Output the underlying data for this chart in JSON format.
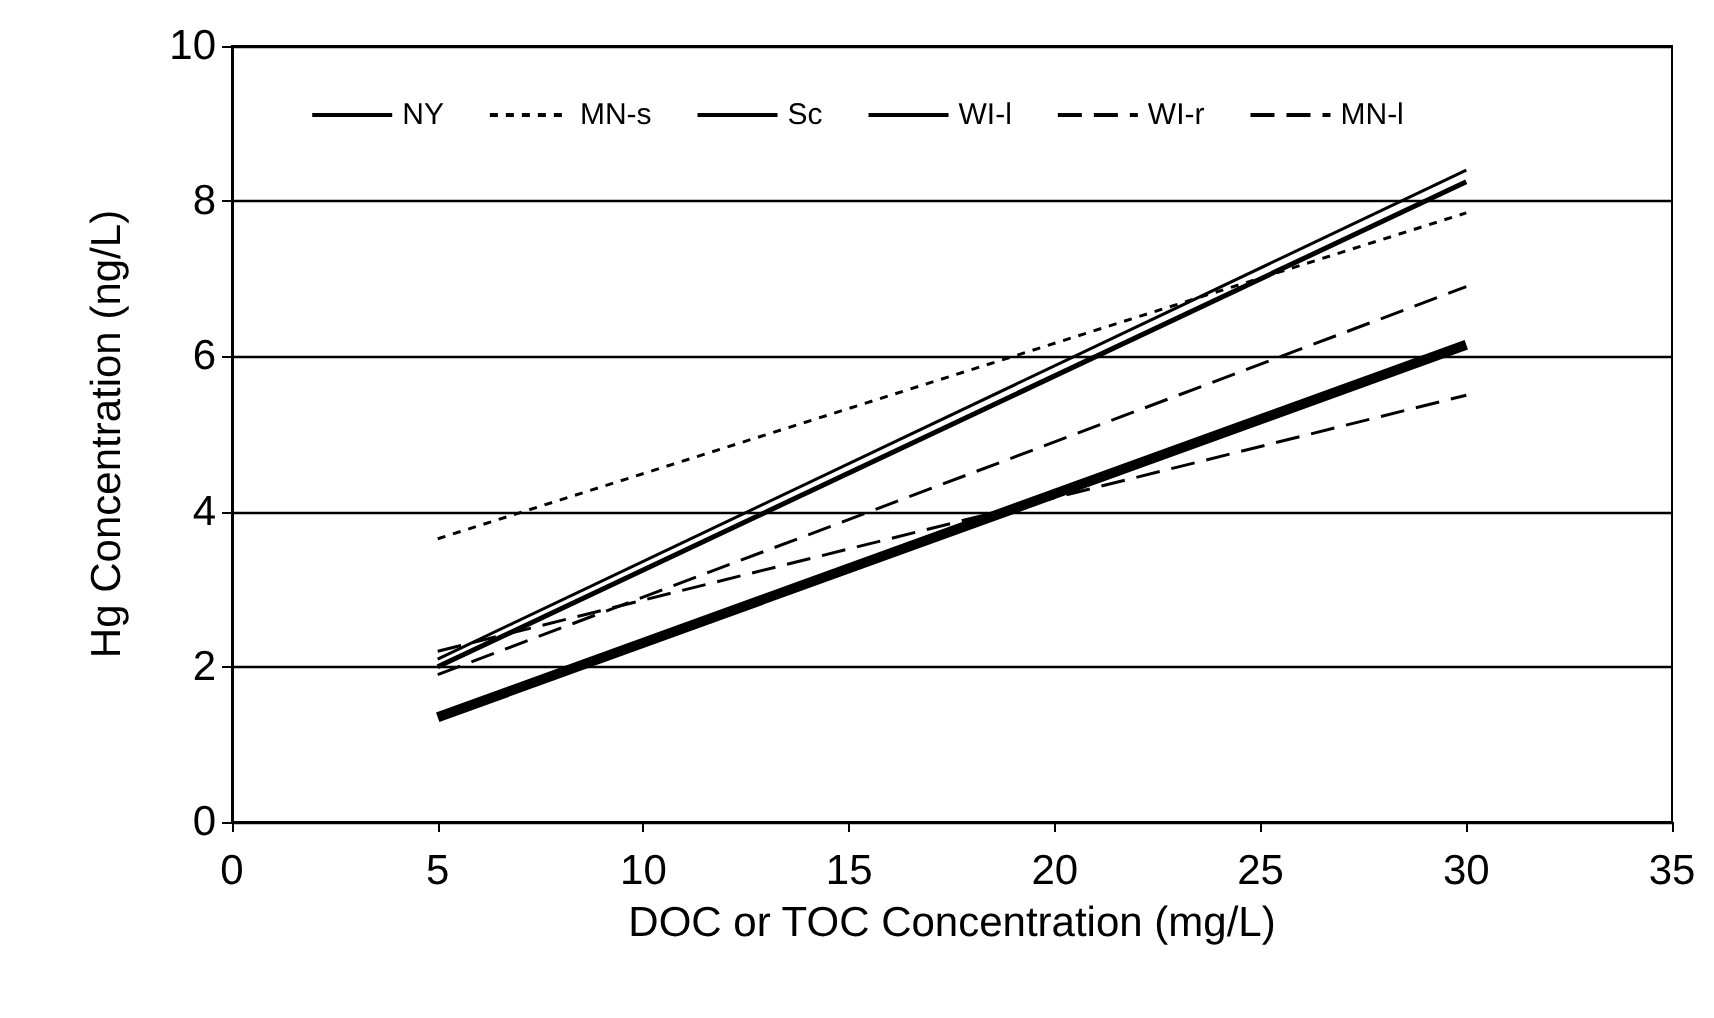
{
  "chart_data": {
    "type": "line",
    "xlabel": "DOC or TOC Concentration (mg/L)",
    "ylabel": "Hg Concentration (ng/L)",
    "xlim": [
      0,
      35
    ],
    "xticks": [
      0,
      5,
      10,
      15,
      20,
      25,
      30,
      35
    ],
    "ylim": [
      0,
      10
    ],
    "yticks": [
      0,
      2,
      4,
      6,
      8,
      10
    ],
    "grid": "y",
    "legend": "top",
    "marker": "none",
    "x": [
      5,
      30
    ],
    "series": [
      {
        "name": "NY",
        "color": "#000000",
        "line_style": "solid",
        "values": [
          2.1,
          8.4
        ]
      },
      {
        "name": "MN-s",
        "color": "#000000",
        "line_style": "dotted",
        "values": [
          3.65,
          7.85
        ]
      },
      {
        "name": "Sc",
        "color": "#000000",
        "line_style": "solid",
        "values": [
          2.0,
          8.25
        ]
      },
      {
        "name": "WI-l",
        "color": "#000000",
        "line_style": "solid",
        "values": [
          1.35,
          6.15
        ]
      },
      {
        "name": "WI-r",
        "color": "#000000",
        "line_style": "dashed",
        "values": [
          1.9,
          6.9
        ]
      },
      {
        "name": "MN-l",
        "color": "#000000",
        "line_style": "dashed",
        "values": [
          2.2,
          5.5
        ]
      }
    ]
  }
}
